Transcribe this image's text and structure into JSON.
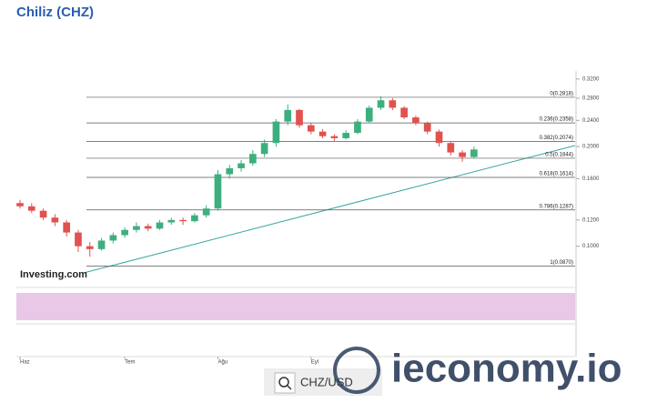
{
  "header": {
    "title": "Chiliz (CHZ)"
  },
  "chart_data": {
    "type": "candlestick",
    "log_scale": true,
    "x": [
      0,
      1,
      2,
      3,
      4,
      5,
      6,
      7,
      8,
      9,
      10,
      11,
      12,
      13,
      14,
      15,
      16,
      17,
      18,
      19,
      20,
      21,
      22,
      23,
      24,
      25,
      26,
      27,
      28,
      29,
      30,
      31,
      32,
      33,
      34,
      35,
      36,
      37,
      38,
      39
    ],
    "open": [
      0.135,
      0.132,
      0.128,
      0.122,
      0.118,
      0.11,
      0.1,
      0.098,
      0.104,
      0.108,
      0.112,
      0.115,
      0.113,
      0.118,
      0.12,
      0.119,
      0.124,
      0.13,
      0.165,
      0.172,
      0.178,
      0.19,
      0.205,
      0.238,
      0.258,
      0.232,
      0.222,
      0.215,
      0.212,
      0.22,
      0.238,
      0.262,
      0.276,
      0.262,
      0.245,
      0.236,
      0.222,
      0.205,
      0.192,
      0.186
    ],
    "high": [
      0.138,
      0.135,
      0.13,
      0.125,
      0.12,
      0.112,
      0.103,
      0.106,
      0.11,
      0.114,
      0.118,
      0.117,
      0.12,
      0.122,
      0.122,
      0.126,
      0.133,
      0.17,
      0.176,
      0.182,
      0.195,
      0.21,
      0.242,
      0.268,
      0.26,
      0.235,
      0.226,
      0.218,
      0.224,
      0.242,
      0.266,
      0.284,
      0.28,
      0.265,
      0.248,
      0.238,
      0.225,
      0.208,
      0.195,
      0.2
    ],
    "low": [
      0.13,
      0.126,
      0.12,
      0.115,
      0.107,
      0.096,
      0.093,
      0.097,
      0.102,
      0.106,
      0.11,
      0.111,
      0.112,
      0.116,
      0.116,
      0.118,
      0.122,
      0.128,
      0.16,
      0.168,
      0.175,
      0.186,
      0.2,
      0.232,
      0.228,
      0.218,
      0.212,
      0.208,
      0.21,
      0.218,
      0.235,
      0.258,
      0.258,
      0.242,
      0.232,
      0.218,
      0.2,
      0.188,
      0.18,
      0.184
    ],
    "close": [
      0.132,
      0.128,
      0.122,
      0.118,
      0.11,
      0.1,
      0.098,
      0.104,
      0.108,
      0.112,
      0.115,
      0.113,
      0.118,
      0.12,
      0.119,
      0.124,
      0.13,
      0.165,
      0.172,
      0.178,
      0.19,
      0.205,
      0.238,
      0.258,
      0.232,
      0.222,
      0.215,
      0.212,
      0.22,
      0.238,
      0.262,
      0.276,
      0.262,
      0.245,
      0.236,
      0.222,
      0.205,
      0.192,
      0.186,
      0.196
    ],
    "up_color": "#3daf7e",
    "down_color": "#e0524f",
    "xlim": [
      0,
      48
    ],
    "xticks": [
      {
        "value": 0,
        "label": "Haz"
      },
      {
        "value": 9,
        "label": "Tem"
      },
      {
        "value": 17,
        "label": "Ağu"
      },
      {
        "value": 25,
        "label": "Eyl"
      }
    ],
    "ylim": [
      0.082,
      0.33
    ],
    "yticks": [
      {
        "value": 0.32,
        "label": "0.3200"
      },
      {
        "value": 0.28,
        "label": "0.2800"
      },
      {
        "value": 0.24,
        "label": "0.2400"
      },
      {
        "value": 0.2,
        "label": "0.2000"
      },
      {
        "value": 0.16,
        "label": "0.1600"
      },
      {
        "value": 0.12,
        "label": "0.1200"
      },
      {
        "value": 0.1,
        "label": "0.1000"
      }
    ],
    "levels": [
      {
        "value": 0.2818,
        "label": "0(0.2818)"
      },
      {
        "value": 0.2358,
        "label": "0.236(0.2358)"
      },
      {
        "value": 0.2074,
        "label": "0.382(0.2074)"
      },
      {
        "value": 0.1844,
        "label": "0.5(0.1844)"
      },
      {
        "value": 0.1614,
        "label": "0.618(0.1614)"
      },
      {
        "value": 0.1287,
        "label": "0.786(0.1287)"
      },
      {
        "value": 0.087,
        "label": "1(0.0870)"
      }
    ],
    "source_logo": "Investing.com",
    "pair": "CHZ/USD"
  },
  "watermark": "ieconomy.io"
}
